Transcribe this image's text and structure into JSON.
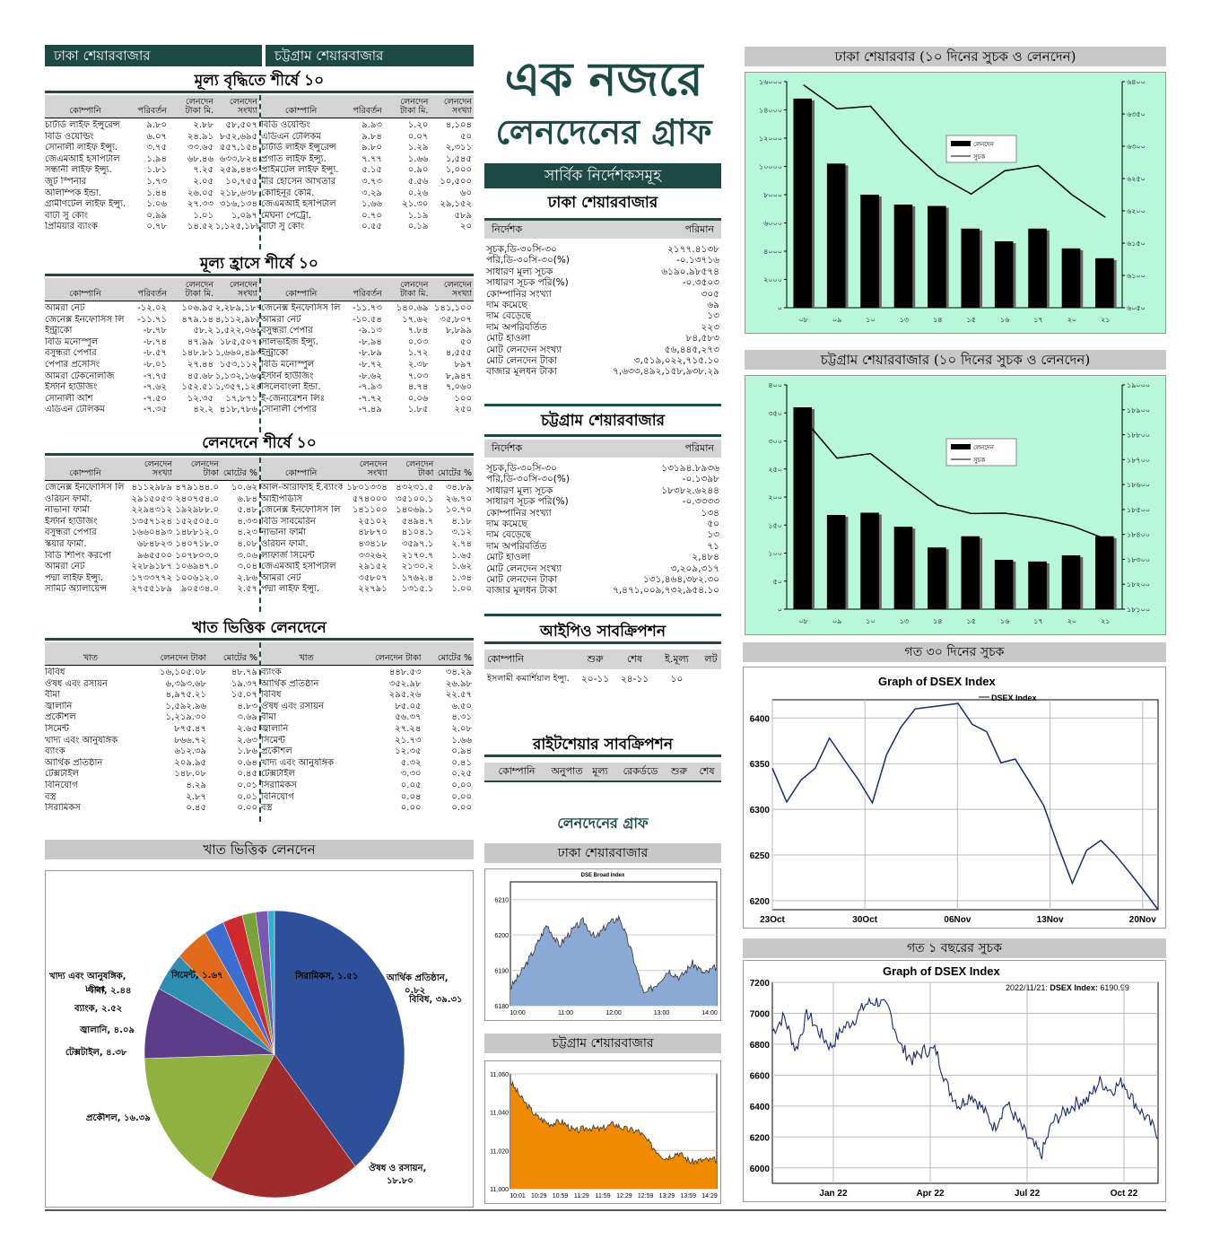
{
  "header": {
    "dhaka_market": "ঢাকা শেয়ারবাজার",
    "ctg_market": "চট্টগ্রাম শেয়ারবাজার",
    "main_title_1": "এক নজরে",
    "main_title_2": "লেনদেনের গ্রাফ"
  },
  "top_gain": {
    "title": "মূল্য বৃদ্ধিতে শীর্ষে ১০",
    "cols": [
      "কোম্পানি",
      "পরিবর্তন",
      "লেনদেন টাকা মি.",
      "লেনদেন সংখ্যা"
    ],
    "left": [
      [
        "চার্টার্ড লাইফ ইন্সুরেন্স",
        "৯.৮০",
        "২.৮৮",
        "৫৮,৫০৭"
      ],
      [
        "বিডি ওয়েল্ডিং",
        "৬.০৭",
        "২৪.৯১",
        "৮৫২,৬৯৫"
      ],
      [
        "সোনালী লাইফ ইন্স্যু.",
        "৩.৭৫",
        "৩৩.৬৫",
        "৫৫৭,১৫৪"
      ],
      [
        "জেএমআই হসপিটাল",
        "১.৯৪",
        "৬৮.৪৬",
        "৬৩৩,৮২৪"
      ],
      [
        "সন্ধানী লাইফ ইন্স্যু.",
        "১.৮১",
        "৭.২৫",
        "২৫৯,৪৪৩"
      ],
      [
        "জুট স্পিনার",
        "১.৭৩",
        "২.০৫",
        "১০,৭৫৫"
      ],
      [
        "অলিম্পিক ইন্ডা.",
        "১.৪৪",
        "২৬.০৫",
        "২১৮,৬৩৮"
      ],
      [
        "গ্রামীণটেল লাইফ ইন্স্যু.",
        "১.০৬",
        "২৭.৩৩",
        "৩১৬,১৩৪"
      ],
      [
        "বাটা সু কোং",
        "০.৯৯",
        "১.০১",
        "১,০৯৭"
      ],
      [
        "প্রিমিয়ার ব্যাংক",
        "০.৭৮",
        "১৪.৫২",
        "১,১২৫,১৮৮"
      ]
    ],
    "right": [
      [
        "বিডি ওয়েল্ডিং",
        "৯.৯৩",
        "১.২০",
        "৪,১০৪"
      ],
      [
        "এডিএন টেলিকম",
        "৯.৮৪",
        "০.০৭",
        "৫০"
      ],
      [
        "চার্টার্ড লাইফ ইন্সুরেন্স",
        "৯.৮০",
        "১.২৯",
        "২,৩১১"
      ],
      [
        "প্রগতি লাইফ ইন্স্যু.",
        "৭.৭৭",
        "১.৬৬",
        "১,৫৪৫"
      ],
      [
        "প্রাইমটেল লাইফ ইন্স্যু.",
        "৫.১৫",
        "০.৯০",
        "১,০০০"
      ],
      [
        "মীর হোসেন আখতার",
        "৩.৭৩",
        "৫.৫৬",
        "১০,৫০০"
      ],
      [
        "কোহিনূর কেমি.",
        "৩.২৯",
        "০.২৬",
        "৬০"
      ],
      [
        "জেএমআই হসপিটাল",
        "১.৬৬",
        "২১.৩০",
        "২৯,১৫২"
      ],
      [
        "মেঘনা পেট্রো.",
        "০.৭০",
        "১.১৯",
        "৫৮৯"
      ],
      [
        "বাটা সু কোং",
        "০.৫৫",
        "০.১৯",
        "২০"
      ]
    ]
  },
  "top_loss": {
    "title": "মূল্য হ্রাসে শীর্ষে ১০",
    "left": [
      [
        "আমরা নেট",
        "-১২.০২",
        "১০৬.৯৫",
        "২,২৮৯,১৮৭"
      ],
      [
        "জেনেক্স ইনফোসিস লি",
        "-১১.৭১",
        "৪৭৯.১৪",
        "৪,১১২,৯৮৯"
      ],
      [
        "ইন্ট্রাকো",
        "-৮.৭৮",
        "৫৮.২",
        "১,৫২২,০৬৪"
      ],
      [
        "বিডি মনোস্পুল",
        "-৮.৭৪",
        "৪৭.৯৯",
        "১৮৫,৫০৭"
      ],
      [
        "বসুন্ধরা পেপার",
        "-৮.৫৭",
        "১৪৮.৮১",
        "১,৬৬০,৪৯৩"
      ],
      [
        "পেপার প্রসেসিং",
        "-৮.০১",
        "২৭.৪৪",
        "১৫৩,১১২"
      ],
      [
        "আমরা টেকনোলজি",
        "-৭.৭৫",
        "৪৫.৬৮",
        "১,১৩২,১৬০"
      ],
      [
        "ইস্টার্ন হাউজিং",
        "-৭.৬২",
        "১৫২.৫১",
        "১,৩৫৭,১২৪"
      ],
      [
        "সোনালী আঁশ",
        "-৭.৫০",
        "১২.৩৫",
        "১৭,৮৭১"
      ],
      [
        "এডিএন টেলিকম",
        "-৭.৩৫",
        "৪২.২",
        "৪১৮,৭৮৬"
      ]
    ],
    "right": [
      [
        "জেনেক্স ইনফোসিস লি",
        "-১১.৭৩",
        "১৪০.৬৯",
        "১৪১,১০০"
      ],
      [
        "আমরা নেট",
        "-১০.৫৪",
        "১৭.৬২",
        "৩৫,৮০৭"
      ],
      [
        "বসুন্ধরা পেপার",
        "-৯.১৩",
        "৭.৮৪",
        "৮,৮৯৯"
      ],
      [
        "সালভাইজ ইন্স্যু.",
        "-৮.৯৪",
        "০.০৩",
        "৫০"
      ],
      [
        "ইন্ট্রাকো",
        "-৮.৮৯",
        "১.৭২",
        "৪,৫৫৫"
      ],
      [
        "বিডি মনোস্পুল",
        "-৮.৭২",
        "২.৩৮",
        "৮৯৭"
      ],
      [
        "ইস্টার্ন হাউজিং",
        "-৮.৬২",
        "৭.০৩",
        "৮,৯৪৭"
      ],
      [
        "সিলেবাংলা ইন্ডা.",
        "-৭.৯৩",
        "৪.৭৪",
        "৭,০৬০"
      ],
      [
        "ই-জেনারেশন লিঃ",
        "-৭.৭২",
        "০.০৬",
        "১০০"
      ],
      [
        "সোনালী পেপার",
        "-৭.৪৯",
        "১.৮৫",
        "২৫০"
      ]
    ]
  },
  "top_trade": {
    "title": "লেনদেনে শীর্ষে ১০",
    "cols": [
      "কোম্পানি",
      "লেনদেন সংখ্যা",
      "লেনদেন টাকা",
      "মোটের %"
    ],
    "left": [
      [
        "জেনেক্স ইনফোসিস লি",
        "৪১১২৯৮৯",
        "৪৭৯১৪৪.০",
        "১০.৬২"
      ],
      [
        "ওরিয়ন ফার্মা.",
        "২৯১৫০৫৩",
        "২৪০৭৫৪.০",
        "৬.৮৪"
      ],
      [
        "নাভানা ফার্মা",
        "২২৯৪৩১২",
        "১৯২৯৮৮.০",
        "৫.৪৮"
      ],
      [
        "ইস্টার্ন হাউজিং",
        "১৩৫৭১২৪",
        "১৫২৫০৫.০",
        "৪.৩৩"
      ],
      [
        "বসুন্ধরা পেপার",
        "১৬৬০৪৯৩",
        "১৪৮৮১২.০",
        "৪.২৩"
      ],
      [
        "স্কয়ার ফার্মা.",
        "৬৮৪৮২৩",
        "১৪০৭১৮.০",
        "৪.০৮"
      ],
      [
        "বিডি শিপিং করপো",
        "৯৬৫৫০০",
        "১০৭৮০৩.০",
        "৩.০৬"
      ],
      [
        "আমরা নেট",
        "২২৮৯১৮৭",
        "১০৬৯৪৭.০",
        "৩.০৪"
      ],
      [
        "পদ্মা লাইফ ইন্স্যু.",
        "১৭৩৩৭৭২",
        "১০০৬১২.০",
        "২.৮৬"
      ],
      [
        "সামিট অ্যালায়েন্স",
        "২৭৫৫১৮৯",
        "৯০৫৩৪.০",
        "২.৫৭"
      ]
    ],
    "right": [
      [
        "আল-আরাফাহ ই.ব্যাংক",
        "১৮০১৩৩৪",
        "৪৩২৩১.৫",
        "৩৪.৮৯"
      ],
      [
        "আইপিডিসি",
        "৫৭৪০০০",
        "৩৫১০০.১",
        "২৬.৭০"
      ],
      [
        "জেনেক্স ইনফোসিস লি",
        "১৪১১০০",
        "১৪০৬৯.১",
        "১০.৭০"
      ],
      [
        "বিডি সাবমেরিন",
        "২৫১০২",
        "৫৪৯৪.৭",
        "৪.১৮"
      ],
      [
        "নাভানা ফার্মা",
        "৪৮৮৭০",
        "৪১০৪.১",
        "৩.১২"
      ],
      [
        "ওরিয়ন ফার্মা.",
        "৪৩৪১৮",
        "৩৫৯৭.১",
        "২.৭৪"
      ],
      [
        "লাফার্জ সিমেন্ট",
        "৩৩২৬২",
        "২১৭০.৭",
        "১.৬৫"
      ],
      [
        "জেএমআই হসপিটাল",
        "২৯১৫২",
        "২১৩০.২",
        "১.৬২"
      ],
      [
        "আমরা নেট",
        "৩৫৮০৭",
        "১৭৬২.৪",
        "১.৩৪"
      ],
      [
        "পদ্মা লাইফ ইন্স্যু.",
        "২২৭৯১",
        "১৩১৫.১",
        "১.০০"
      ]
    ]
  },
  "sector": {
    "title": "খাত ভিত্তিক লেনদেনে",
    "col_sector": "খাত",
    "col_tk": "লেনদেন টাকা",
    "col_pct": "মোটের %",
    "left": [
      [
        "বিবিধ",
        "১৬,১০৫.০৮",
        "৪৮.৭৯"
      ],
      [
        "ঔষধ এবং রসায়ন",
        "৬,৩৯৩.৬৮",
        "১৯.৩৭"
      ],
      [
        "বীমা",
        "৪,৯৭৫.২১",
        "১৫.০৭"
      ],
      [
        "জ্বালানি",
        "১,৫৯২.৯৬",
        "৪.৮৩"
      ],
      [
        "প্রকৌশল",
        "১,২১৯.৩০",
        "৩.৬৯"
      ],
      [
        "সিমেন্ট",
        "৮৭৫.৪৭",
        "২.৬৫"
      ],
      [
        "খাদ্য এবং আনুষঙ্গিক",
        "৮৬৬.৭২",
        "২.৬৩"
      ],
      [
        "ব্যাংক",
        "৬১২.৩৯",
        "১.৮৬"
      ],
      [
        "আর্থিক প্রতিষ্ঠান",
        "২০৯.৯৫",
        "০.৬৪"
      ],
      [
        "টেক্সটাইল",
        "১৪৮.০৮",
        "০.৪৫"
      ],
      [
        "বিনিয়োগ",
        "৪.২৯",
        "০.০১"
      ],
      [
        "বস্ত্র",
        "২.৮৭",
        "০.০১"
      ],
      [
        "সিরামিকস",
        "০.৪৫",
        "০.০০"
      ]
    ],
    "right": [
      [
        "ব্যাংক",
        "৪৪৮.৫৩",
        "৩৪.২৯"
      ],
      [
        "আর্থিক প্রতিষ্ঠান",
        "৩৫২.৯৮",
        "২৬.৯৮"
      ],
      [
        "বিবিধ",
        "২৯৫.২৬",
        "২২.৫৭"
      ],
      [
        "ঔষধ এবং রসায়ন",
        "৮৫.০৫",
        "৬.৫০"
      ],
      [
        "বীমা",
        "৫৬.৩৭",
        "৪.৩১"
      ],
      [
        "জ্বালানি",
        "২৭.২৪",
        "২.০৮"
      ],
      [
        "সিমেন্ট",
        "২১.৭৩",
        "১.৬৬"
      ],
      [
        "প্রকৌশল",
        "১২.৩৫",
        "০.৯৪"
      ],
      [
        "খাদ্য এবং আনুষঙ্গিক",
        "৫.৩২",
        "০.৪১"
      ],
      [
        "টেক্সটাইল",
        "৩.৩০",
        "০.২৫"
      ],
      [
        "সিরামিকস",
        "০.০৫",
        "০.০০"
      ],
      [
        "বিনিয়োগ",
        "০.০৪",
        "০.০০"
      ],
      [
        "বস্ত্র",
        "০.০০",
        "০.০০"
      ]
    ]
  },
  "pie": {
    "title": "খাত ভিত্তিক লেনদেন"
  },
  "indices": {
    "title": "সার্বিক নির্দেশকসমূহ",
    "dhaka_title": "ঢাকা শেয়ারবাজার",
    "ctg_title": "চট্টগ্রাম শেয়ারবাজার",
    "col_1": "নির্দেশক",
    "col_2": "পরিমান",
    "dhaka": [
      [
        "সূচক,ডি-৩০সি-৩০",
        "২১৭৭.৪১৩৮"
      ],
      [
        "পরি,ডি-৩০সি-৩০(%)",
        "-০.১৩৭১৬"
      ],
      [
        "সাধারণ মূল্য সূচক",
        "৬১৯০.৯৮৫৭৪"
      ],
      [
        "সাধারণ সূচক পরি(%)",
        "-০.৩৫০৩"
      ],
      [
        "কোম্পানির সংখ্যা",
        "৩০৫"
      ],
      [
        "দাম কমেছে",
        "৬৯"
      ],
      [
        "দাম বেড়েছে",
        "১৩"
      ],
      [
        "দাম অপরিবর্তিত",
        "২২৩"
      ],
      [
        "মোট হাওলা",
        "৮৪,৫৮৩"
      ],
      [
        "মোট লেনদেন সংখ্যা",
        "৫৬,৪৪৫,২৭৩"
      ],
      [
        "মোট লেনদেন টাকা",
        "৩,৫১৯,০২২,৭১৫.১০"
      ],
      [
        "বাজার মূলধন টাকা",
        "৭,৬৩৩,৪৯২,১৫৮,৯৩৮.২৯"
      ]
    ],
    "ctg": [
      [
        "সূচক,ডি-৩০সি-৩০",
        "১৩১৯৪.৮৯৩৬"
      ],
      [
        "পরি,ডি-৩০সি-৩০(%)",
        "-০.১৩৯৮"
      ],
      [
        "সাধারণ মূল্য সূচক",
        "১৮৩৮২.৬২৪৪"
      ],
      [
        "সাধারণ সূচক পরি(%)",
        "-০.৩৩৩৩"
      ],
      [
        "কোম্পানির সংখ্যা",
        "১৩৪"
      ],
      [
        "দাম কমেছে",
        "৫০"
      ],
      [
        "দাম বেড়েছে",
        "১৩"
      ],
      [
        "দাম অপরিবর্তিত",
        "৭১"
      ],
      [
        "মোট হাওলা",
        "২,৪৮৪"
      ],
      [
        "মোট লেনদেন সংখ্যা",
        "৩,২০৯,৩১৭"
      ],
      [
        "মোট লেনদেন টাকা",
        "১৩১,৪৬৪,৩৮২.৩০"
      ],
      [
        "বাজার মূলধন টাকা",
        "৭,৪৭১,০০৯,৭৩২,৯৫৪.১০"
      ]
    ]
  },
  "ipo": {
    "title": "আইপিও সাবক্রিপশন",
    "cols": [
      "কোম্পানি",
      "শুরু",
      "শেষ",
      "ই.মূল্য",
      "লট"
    ],
    "row": [
      "ইসলামী কমার্শিয়াল ইন্স্যু.",
      "২০-১১",
      "২৪-১১",
      "১০",
      ""
    ]
  },
  "rights": {
    "title": "রাইটশেয়ার সাবক্রিপশন",
    "cols": [
      "কোম্পানি",
      "অনুপাত",
      "মূল্য",
      "রেকর্ডডে",
      "শুরু",
      "শেষ"
    ]
  },
  "trade_graph": {
    "title": "লেনদেনের গ্রাফ",
    "dhaka": "ঢাকা শেয়ারবাজার",
    "ctg": "চট্টগ্রাম শেয়ারবাজার"
  },
  "right_charts": {
    "dhaka_title": "ঢাকা শেয়ারবার (১০ দিনের সুচক ও লেনদেন)",
    "ctg_title": "চট্টগ্রাম শেয়ারবাজার (১০ দিনের সুচক ও লেনদেন)",
    "legend_bar": "লেনদেন",
    "legend_line": "সুচক",
    "d30_title": "গত ৩০ দিনের সুচক",
    "y1_title": "গত ১ বছরের সুচক"
  },
  "chart_data": [
    {
      "type": "bar",
      "id": "dhaka10",
      "categories": [
        "০৮",
        "০৯",
        "১০",
        "১৩",
        "১৪",
        "১৫",
        "১৬",
        "১৭",
        "২০",
        "২১"
      ],
      "values": [
        14800,
        10200,
        8000,
        7300,
        7200,
        5600,
        4700,
        5600,
        4200,
        3500
      ],
      "line": [
        6395,
        6358,
        6362,
        6303,
        6255,
        6226,
        6262,
        6270,
        6225,
        6190
      ],
      "ylim": [
        0,
        16000
      ],
      "y2lim": [
        6050,
        6400
      ],
      "yticks": [
        "০",
        "২০০০",
        "৪০০০",
        "৬০০০",
        "৮০০০",
        "১০০০০",
        "১২০০০",
        "১৪০০০",
        "১৬০০০"
      ],
      "y2ticks": [
        "৬০৫০",
        "৬১০০",
        "৬১৫০",
        "৬২০০",
        "৬২৫০",
        "৬৩০০",
        "৬৩৫০",
        "৬৪০০"
      ]
    },
    {
      "type": "bar",
      "id": "ctg10",
      "categories": [
        "০৮",
        "০৯",
        "১০",
        "১৩",
        "১৪",
        "১৫",
        "১৬",
        "১৭",
        "২০",
        "২১"
      ],
      "values": [
        360,
        168,
        172,
        147,
        110,
        130,
        88,
        85,
        96,
        130
      ],
      "line": [
        18865,
        18706,
        18724,
        18618,
        18518,
        18484,
        18485,
        18466,
        18434,
        18382
      ],
      "ylim": [
        0,
        400
      ],
      "y2lim": [
        18100,
        19000
      ],
      "yticks": [
        "০",
        "৫০",
        "১০০",
        "১৫০",
        "২০০",
        "২৫০",
        "৩০০",
        "৩৫০",
        "৪০০"
      ],
      "y2ticks": [
        "১৮১০০",
        "১৮২০০",
        "১৮৩০০",
        "১৮৪০০",
        "১৮৫০০",
        "১৮৬০০",
        "১৮৭০০",
        "১৮৮০০",
        "১৮৯০০",
        "১৯০০০"
      ]
    },
    {
      "type": "line",
      "id": "d30",
      "title": "Graph of DSEX Index",
      "legend": "DSEX Index",
      "x_labels": [
        "23Oct",
        "30Oct",
        "06Nov",
        "13Nov",
        "20Nov"
      ],
      "values": [
        6345,
        6308,
        6332,
        6345,
        6378,
        6355,
        6333,
        6307,
        6360,
        6390,
        6410,
        6412,
        6414,
        6416,
        6393,
        6385,
        6351,
        6355,
        6330,
        6304,
        6260,
        6219,
        6255,
        6266,
        6250,
        6231,
        6211,
        6190
      ],
      "ylim": [
        6190,
        6420
      ],
      "yticks": [
        6200,
        6250,
        6300,
        6350,
        6400
      ]
    },
    {
      "type": "line",
      "id": "y1",
      "title": "Graph of DSEX Index",
      "annotation_date": "2022/11/21:",
      "annotation_label": "DSEX Index:",
      "annotation_value": "6190.99",
      "x_labels": [
        "Jan 22",
        "Apr 22",
        "Jul 22",
        "Oct 22"
      ],
      "ylim": [
        5900,
        7200
      ],
      "yticks": [
        6000,
        6200,
        6400,
        6600,
        6800,
        7000,
        7200
      ]
    },
    {
      "type": "area",
      "id": "dsebroad",
      "title": "DSE Broad Index",
      "x_labels": [
        "10:00",
        "11:00",
        "12:00",
        "13:00",
        "14:00"
      ],
      "ylim": [
        6180,
        6215
      ],
      "yticks": [
        6180,
        6190,
        6200,
        6210
      ]
    },
    {
      "type": "area",
      "id": "cse",
      "x_labels": [
        "10:01",
        "10:29",
        "10:59",
        "11:29",
        "11:59",
        "12:29",
        "12:59",
        "13:29",
        "13:59",
        "14:29"
      ],
      "ylim": [
        11000,
        11060
      ],
      "yticks": [
        "11,000",
        "11,020",
        "11,040",
        "11,060"
      ]
    },
    {
      "type": "pie",
      "id": "sector_pie",
      "labels": [
        "বিবিধ, ৩৯.৩১",
        "ঔষধ ও রসায়ন, ১৮.৮০",
        "প্রকৌশল, ১৬.৩৯",
        "খাদ্য এবং আনুষঙ্গিক, ৮.০৫",
        "টেক্সটাইল, ৪.৩৮",
        "জ্বালানি, ৪.০৯",
        "ব্যাংক, ২.৫২",
        "বীমা, ২.৪৪",
        "সিমেন্ট, ১.৬৭",
        "সিরামিকস, ১.৫১",
        "আর্থিক প্রতিষ্ঠান, ০.৮২"
      ],
      "values": [
        39.31,
        18.8,
        16.39,
        8.05,
        4.38,
        4.09,
        2.52,
        2.44,
        1.67,
        1.51,
        0.82
      ],
      "colors": [
        "#2e4f9a",
        "#a02b2b",
        "#90b040",
        "#5c3d8a",
        "#2f8fb0",
        "#e06a1a",
        "#3a6ed0",
        "#d02a30",
        "#77a33a",
        "#7a58b0",
        "#30b0d0"
      ]
    }
  ]
}
